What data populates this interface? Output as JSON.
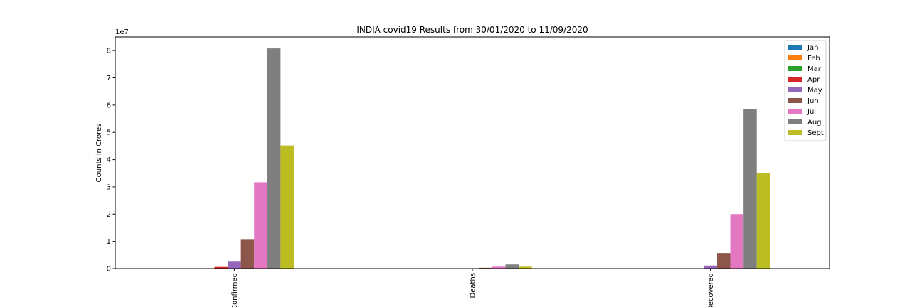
{
  "chart_data": {
    "type": "bar",
    "title": "INDIA covid19 Results from 30/01/2020 to 11/09/2020",
    "xlabel": "",
    "ylabel": "Counts in Crores",
    "offset_text": "1e7",
    "categories": [
      "Confirmed",
      "Deaths",
      "Recovered"
    ],
    "ylim": [
      0,
      8.5
    ],
    "yticks": [
      0,
      1,
      2,
      3,
      4,
      5,
      6,
      7,
      8
    ],
    "yticklabels": [
      "0",
      "1",
      "2",
      "3",
      "4",
      "5",
      "6",
      "7",
      "8"
    ],
    "legend_position": "upper right",
    "grid": false,
    "series": [
      {
        "name": "Jan",
        "color": "#1f77b4",
        "values": [
          0.0,
          0.0,
          0.0
        ]
      },
      {
        "name": "Feb",
        "color": "#ff7f0e",
        "values": [
          0.0,
          0.0,
          0.0
        ]
      },
      {
        "name": "Mar",
        "color": "#2ca02c",
        "values": [
          0.01,
          0.0,
          0.0
        ]
      },
      {
        "name": "Apr",
        "color": "#d62728",
        "values": [
          0.06,
          0.0,
          0.01
        ]
      },
      {
        "name": "May",
        "color": "#9467bd",
        "values": [
          0.28,
          0.01,
          0.11
        ]
      },
      {
        "name": "Jun",
        "color": "#8c564b",
        "values": [
          1.06,
          0.03,
          0.57
        ]
      },
      {
        "name": "Jul",
        "color": "#e377c2",
        "values": [
          3.17,
          0.07,
          2.0
        ]
      },
      {
        "name": "Aug",
        "color": "#7f7f7f",
        "values": [
          8.08,
          0.15,
          5.85
        ]
      },
      {
        "name": "Sept",
        "color": "#bcbd22",
        "values": [
          4.52,
          0.07,
          3.51
        ]
      }
    ]
  }
}
